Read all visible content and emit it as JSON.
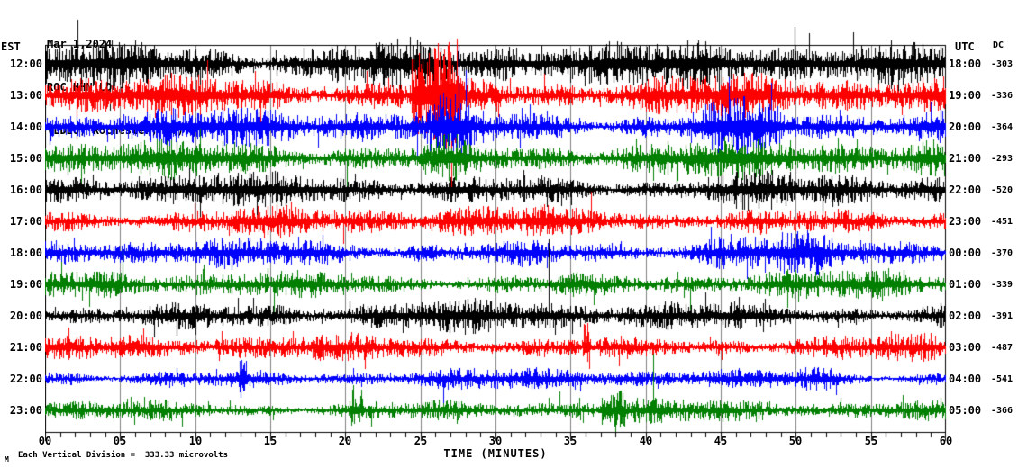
{
  "header": {
    "date": "Mar 1,2024",
    "station": "ROC HHN LD --",
    "location": "(LDEO, Rochester, NY)"
  },
  "axes": {
    "left_label": "EST",
    "right_label": "UTC",
    "dc_label": "DC",
    "x_label": "TIME (MINUTES)",
    "x_ticks": [
      "00",
      "05",
      "10",
      "15",
      "20",
      "25",
      "30",
      "35",
      "40",
      "45",
      "50",
      "55",
      "60"
    ],
    "x_range_minutes": [
      0,
      60
    ]
  },
  "footer": {
    "mark": "M",
    "scale_note": "Each Vertical Division =  333.33 microvolts"
  },
  "chart_data": {
    "type": "line",
    "subtype": "helicorder-seismogram",
    "title": "ROC HHN LD -- (LDEO, Rochester, NY) Mar 1,2024",
    "xlabel": "TIME (MINUTES)",
    "x_range_minutes": [
      0,
      60
    ],
    "minutes_per_row": 60,
    "grid": true,
    "grid_interval_minutes": 5,
    "minor_tick_minutes": 1,
    "vertical_division_microvolts": 333.33,
    "grid_color": "#808080",
    "trace_colors_cycle": [
      "#000000",
      "#ff0000",
      "#0000ff",
      "#007f00"
    ],
    "rows": [
      {
        "est": "12:00",
        "utc": "18:00",
        "dc": "-303",
        "color": "#000000",
        "rel_amp": 13
      },
      {
        "est": "13:00",
        "utc": "19:00",
        "dc": "-336",
        "color": "#ff0000",
        "rel_amp": 12
      },
      {
        "est": "14:00",
        "utc": "20:00",
        "dc": "-364",
        "color": "#0000ff",
        "rel_amp": 11
      },
      {
        "est": "15:00",
        "utc": "21:00",
        "dc": "-293",
        "color": "#007f00",
        "rel_amp": 11
      },
      {
        "est": "16:00",
        "utc": "22:00",
        "dc": "-520",
        "color": "#000000",
        "rel_amp": 9.5
      },
      {
        "est": "17:00",
        "utc": "23:00",
        "dc": "-451",
        "color": "#ff0000",
        "rel_amp": 9
      },
      {
        "est": "18:00",
        "utc": "00:00",
        "dc": "-370",
        "color": "#0000ff",
        "rel_amp": 8.5
      },
      {
        "est": "19:00",
        "utc": "01:00",
        "dc": "-339",
        "color": "#007f00",
        "rel_amp": 8
      },
      {
        "est": "20:00",
        "utc": "02:00",
        "dc": "-391",
        "color": "#000000",
        "rel_amp": 9
      },
      {
        "est": "21:00",
        "utc": "03:00",
        "dc": "-487",
        "color": "#ff0000",
        "rel_amp": 7.5
      },
      {
        "est": "22:00",
        "utc": "04:00",
        "dc": "-541",
        "color": "#0000ff",
        "rel_amp": 6
      },
      {
        "est": "23:00",
        "utc": "05:00",
        "dc": "-366",
        "color": "#007f00",
        "rel_amp": 6.5
      }
    ],
    "events": [
      {
        "row": 0,
        "m0": 19.0,
        "m1": 35.0,
        "k": 1.35
      },
      {
        "row": 1,
        "m0": 24.4,
        "m1": 27.6,
        "k": 3.4
      },
      {
        "row": 2,
        "m0": 25.6,
        "m1": 28.2,
        "k": 1.7
      },
      {
        "row": 2,
        "m0": 43.0,
        "m1": 49.0,
        "k": 1.8
      },
      {
        "row": 3,
        "m0": 26.0,
        "m1": 28.0,
        "k": 1.4
      },
      {
        "row": 4,
        "m0": 42.0,
        "m1": 50.0,
        "k": 1.3
      },
      {
        "row": 6,
        "m0": 44.0,
        "m1": 52.0,
        "k": 1.35
      },
      {
        "row": 9,
        "m0": 35.8,
        "m1": 36.25,
        "k": 3.0
      },
      {
        "row": 10,
        "m0": 12.9,
        "m1": 13.5,
        "k": 2.2
      },
      {
        "row": 10,
        "m0": 50.0,
        "m1": 52.5,
        "k": 1.5
      },
      {
        "row": 11,
        "m0": 37.0,
        "m1": 38.6,
        "k": 1.9
      },
      {
        "row": 11,
        "m0": 20.2,
        "m1": 21.2,
        "k": 1.8
      }
    ]
  }
}
